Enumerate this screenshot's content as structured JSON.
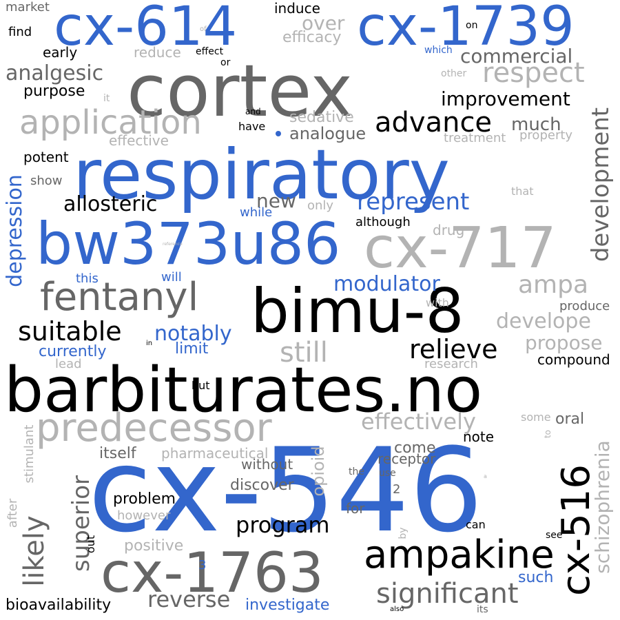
{
  "colors": {
    "background": "#ffffff",
    "blue": "#3366cc",
    "black": "#000000",
    "dark_gray": "#666666",
    "light_gray": "#b3b3b3"
  },
  "words": {
    "cx546": "cx-546",
    "barbiturates": "barbiturates.no",
    "respiratory": "respiratory",
    "cortex": "cortex",
    "cx1739": "cx-1739",
    "cx614": "cx-614",
    "bw373u86": "bw373u86",
    "cx717": "cx-717",
    "bimu8": "bimu-8",
    "cx1763": "cx-1763",
    "fentanyl": "fentanyl",
    "predecessor": "predecessor",
    "ampakine": "ampakine",
    "application": "application",
    "advance": "advance",
    "respect": "respect",
    "cx516": "cx-516",
    "development": "development",
    "depression": "depression",
    "significant": "significant",
    "superior": "superior",
    "likely": "likely",
    "suitable": "suitable",
    "still": "still",
    "relieve": "relieve",
    "program": "program",
    "reverse": "reverse",
    "schizophrenia": "schizophrenia",
    "effectively": "effectively",
    "represent": "represent",
    "allosteric": "allosteric",
    "improvement": "improvement",
    "commercial": "commercial",
    "modulator": "modulator",
    "ampa": "ampa",
    "develope": "develope",
    "propose": "propose",
    "notably": "notably",
    "analgesic": "analgesic",
    "opioid": "opioid",
    "over": "over",
    "efficacy": "efficacy",
    "much": "much",
    "new": "new",
    "analogue": "analogue",
    "sedative": "sedative",
    "bioavailability": "bioavailability",
    "investigate": "investigate",
    "problem": "problem",
    "discover": "discover",
    "itself": "itself",
    "pharmaceutical": "pharmaceutical",
    "come": "come",
    "receptor": "receptor",
    "without": "without",
    "compound": "compound",
    "note": "note",
    "oral": "oral",
    "limit": "limit",
    "currently": "currently",
    "purpose": "purpose",
    "market": "market",
    "induce": "induce",
    "find": "find",
    "early": "early",
    "reduce": "reduce",
    "effect": "effect",
    "or": "or",
    "potent": "potent",
    "show": "show",
    "effective": "effective",
    "treatment": "treatment",
    "property": "property",
    "although": "although",
    "drug": "drug",
    "only": "only",
    "while": "while",
    "this": "this",
    "will": "will",
    "produce": "produce",
    "with": "with",
    "research": "research",
    "lead": "lead",
    "but": "but",
    "in": "in",
    "some": "some",
    "to": "to",
    "the": "the",
    "use": "use",
    "for": "for",
    "can": "can",
    "see": "see",
    "such": "such",
    "its": "its",
    "also": "also",
    "positive": "positive",
    "however": "however",
    "out": "out",
    "stimulant": "stimulant",
    "after": "after",
    "by": "by",
    "two": "2",
    "three": "3",
    "on": "on",
    "which": "which",
    "other": "other",
    "it": "it",
    "and": "and",
    "have": "have",
    "of": "of",
    "that": "that",
    "reference": "reference",
    "a_small": "a"
  }
}
